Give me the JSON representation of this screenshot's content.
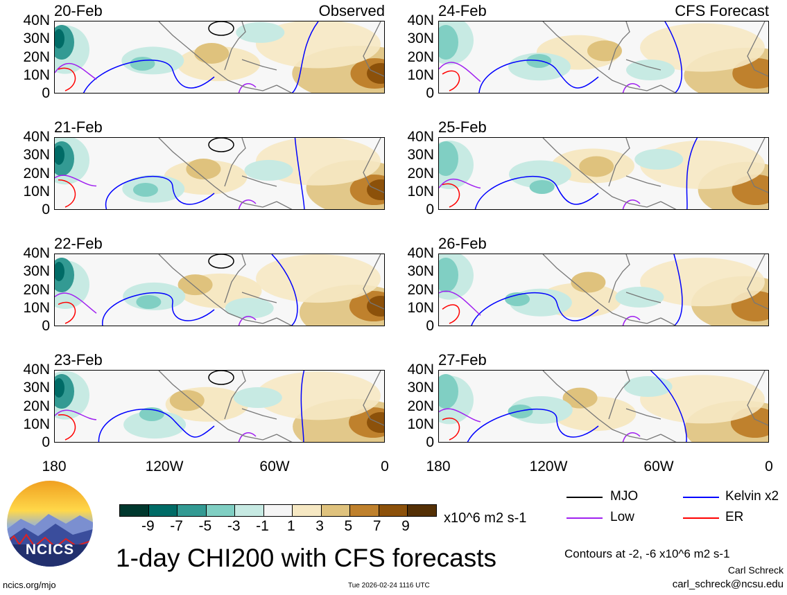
{
  "panels_left": {
    "title": "Observed",
    "dates": [
      "20-Feb",
      "21-Feb",
      "22-Feb",
      "23-Feb"
    ]
  },
  "panels_right": {
    "title": "CFS Forecast",
    "dates": [
      "24-Feb",
      "25-Feb",
      "26-Feb",
      "27-Feb"
    ]
  },
  "y_ticks": [
    "40N",
    "30N",
    "20N",
    "10N",
    "0"
  ],
  "x_ticks": [
    "180",
    "120W",
    "60W",
    "0"
  ],
  "colorbar": {
    "colors": [
      "#00382e",
      "#006b66",
      "#339a93",
      "#80cfc3",
      "#c7eae3",
      "#f5f5f5",
      "#f6e8c3",
      "#dfc27d",
      "#bf812d",
      "#8c510a",
      "#543005"
    ],
    "ticks": [
      "-9",
      "-7",
      "-5",
      "-3",
      "-1",
      "1",
      "3",
      "5",
      "7",
      "9"
    ],
    "units": "x10^6 m2 s-1"
  },
  "legend": {
    "items": [
      {
        "label": "MJO",
        "color": "#000000"
      },
      {
        "label": "Kelvin x2",
        "color": "#0000ff"
      },
      {
        "label": "Low",
        "color": "#a020f0"
      },
      {
        "label": "ER",
        "color": "#ff0000"
      }
    ],
    "contours_note": "Contours at -2, -6 x10^6 m2 s-1"
  },
  "title": "1-day CHI200 with CFS forecasts",
  "timestamp": "Tue 2026-02-24 1116 UTC",
  "author": "Carl Schreck",
  "email": "carl_schreck@ncsu.edu",
  "url": "ncics.org/mjo",
  "logo_text": "NCICS"
}
